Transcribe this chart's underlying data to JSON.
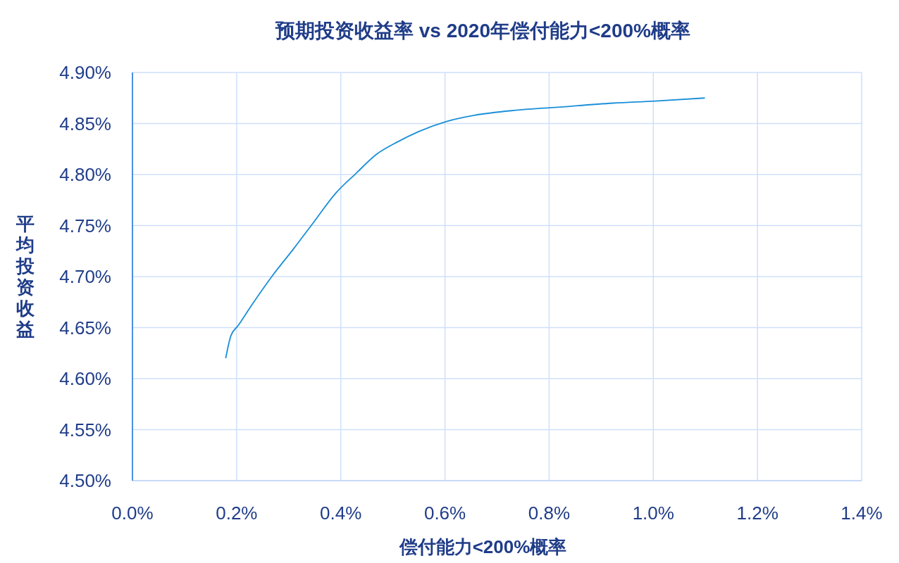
{
  "chart_data": {
    "type": "line",
    "title": "预期投资收益率 vs 2020年偿付能力<200%概率",
    "xlabel": "偿付能力<200%概率",
    "ylabel": "平均投资收益",
    "x": [
      0.179,
      0.189,
      0.203,
      0.229,
      0.269,
      0.309,
      0.349,
      0.389,
      0.429,
      0.469,
      0.509,
      0.549,
      0.603,
      0.656,
      0.736,
      0.816,
      0.923,
      1.003,
      1.099
    ],
    "series": [
      {
        "color": "#1a8fd8",
        "values": [
          4.62,
          4.642,
          4.652,
          4.672,
          4.701,
          4.727,
          4.754,
          4.781,
          4.801,
          4.82,
          4.832,
          4.842,
          4.852,
          4.858,
          4.863,
          4.866,
          4.87,
          4.872,
          4.875
        ]
      }
    ],
    "xlim": [
      0,
      1.4
    ],
    "xticks": [
      {
        "value": 0,
        "label": "0.0%"
      },
      {
        "value": 0.2,
        "label": "0.2%"
      },
      {
        "value": 0.4,
        "label": "0.4%"
      },
      {
        "value": 0.6,
        "label": "0.6%"
      },
      {
        "value": 0.8,
        "label": "0.8%"
      },
      {
        "value": 1.0,
        "label": "1.0%"
      },
      {
        "value": 1.2,
        "label": "1.2%"
      },
      {
        "value": 1.4,
        "label": "1.4%"
      }
    ],
    "ylim": [
      4.5,
      4.9
    ],
    "yticks": [
      {
        "value": 4.5,
        "label": "4.50%"
      },
      {
        "value": 4.55,
        "label": "4.55%"
      },
      {
        "value": 4.6,
        "label": "4.60%"
      },
      {
        "value": 4.65,
        "label": "4.65%"
      },
      {
        "value": 4.7,
        "label": "4.70%"
      },
      {
        "value": 4.75,
        "label": "4.75%"
      },
      {
        "value": 4.8,
        "label": "4.80%"
      },
      {
        "value": 4.85,
        "label": "4.85%"
      },
      {
        "value": 4.9,
        "label": "4.90%"
      }
    ],
    "grid": true,
    "marker": "none",
    "line_style": "solid"
  }
}
